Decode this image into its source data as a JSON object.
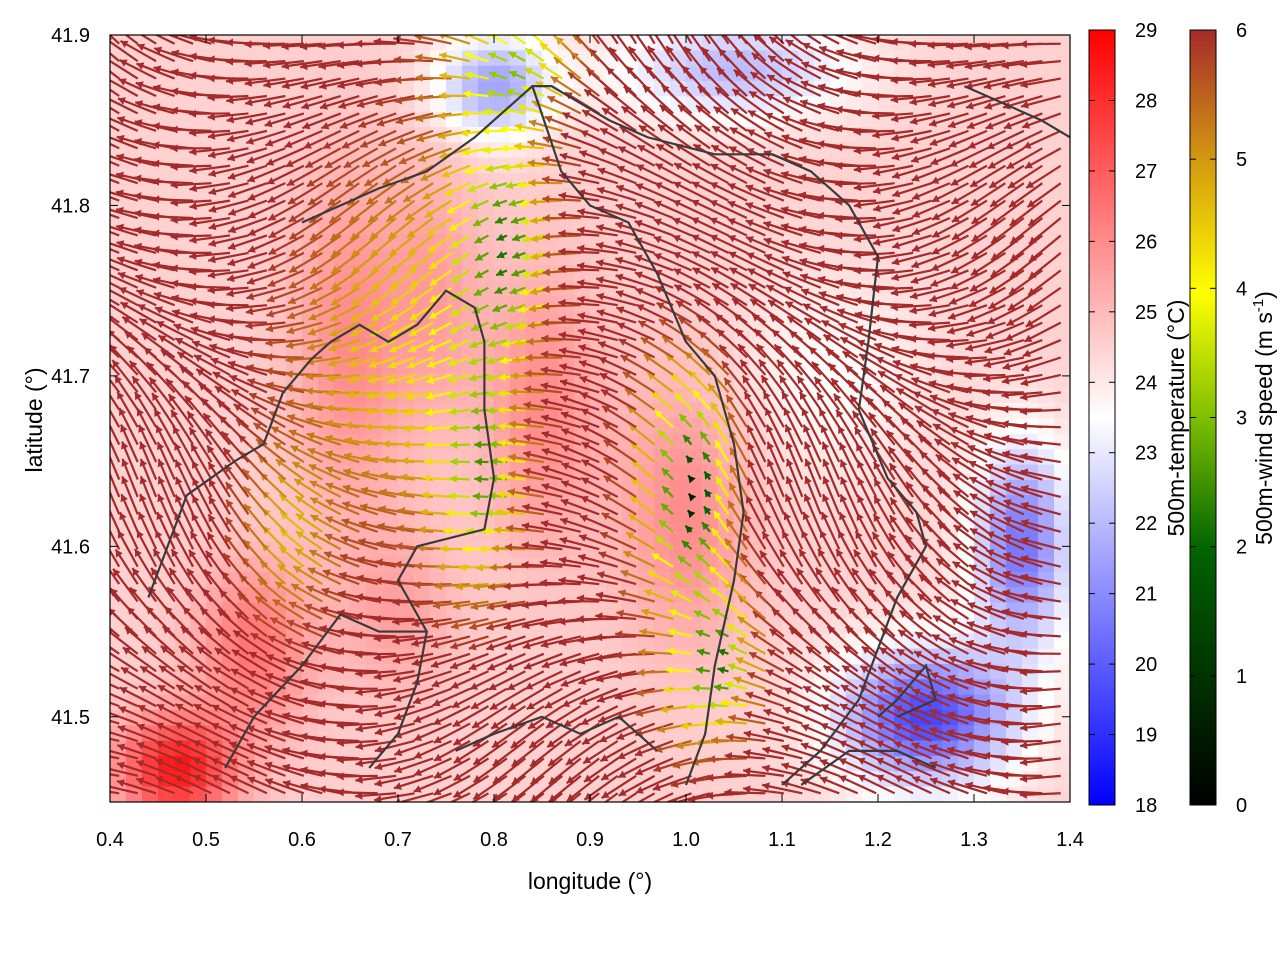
{
  "chart_data": {
    "type": "heatmap",
    "subtype": "temperature field with wind vectors and contour lines",
    "xlabel": "longitude (°)",
    "ylabel": "latitude (°)",
    "xlim": [
      0.4,
      1.4
    ],
    "ylim": [
      41.45,
      41.9
    ],
    "x_ticks": [
      0.4,
      0.5,
      0.6,
      0.7,
      0.8,
      0.9,
      1.0,
      1.1,
      1.2,
      1.3,
      1.4
    ],
    "x_tick_labels": [
      "0.4",
      "0.5",
      "0.6",
      "0.7",
      "0.8",
      "0.9",
      "1.0",
      "1.1",
      "1.2",
      "1.3",
      "1.4"
    ],
    "y_ticks": [
      41.5,
      41.6,
      41.7,
      41.8,
      41.9
    ],
    "y_tick_labels": [
      "41.5",
      "41.6",
      "41.7",
      "41.8",
      "41.9"
    ],
    "grid": false,
    "colorbars": [
      {
        "label": "500m-temperature (°C)",
        "range": [
          18,
          29
        ],
        "ticks": [
          18,
          19,
          20,
          21,
          22,
          23,
          24,
          25,
          26,
          27,
          28,
          29
        ],
        "tick_labels": [
          "18",
          "19",
          "20",
          "21",
          "22",
          "23",
          "24",
          "25",
          "26",
          "27",
          "28",
          "29"
        ],
        "colors": [
          "#0000ff",
          "#ffffff",
          "#ff0000"
        ]
      },
      {
        "label": "500m-wind speed (m s",
        "label_superscript": "-1",
        "label_suffix": ")",
        "range": [
          0,
          6
        ],
        "ticks": [
          0,
          1,
          2,
          3,
          4,
          5,
          6
        ],
        "tick_labels": [
          "0",
          "1",
          "2",
          "3",
          "4",
          "5",
          "6"
        ],
        "colors": [
          "#000000",
          "#006400",
          "#7fbf00",
          "#ffff00",
          "#d49a10",
          "#a52a2a"
        ]
      }
    ],
    "temperature_features": [
      {
        "lon": 0.47,
        "lat": 41.47,
        "temp": 28.5,
        "spread_lon": 0.06,
        "spread_lat": 0.03
      },
      {
        "lon": 0.55,
        "lat": 41.54,
        "temp": 26.5,
        "spread_lon": 0.06,
        "spread_lat": 0.05
      },
      {
        "lon": 0.65,
        "lat": 41.72,
        "temp": 26,
        "spread_lon": 0.06,
        "spread_lat": 0.1
      },
      {
        "lon": 0.74,
        "lat": 41.75,
        "temp": 25.5,
        "spread_lon": 0.05,
        "spread_lat": 0.08
      },
      {
        "lon": 0.85,
        "lat": 41.68,
        "temp": 26,
        "spread_lon": 0.06,
        "spread_lat": 0.08
      },
      {
        "lon": 1.0,
        "lat": 41.62,
        "temp": 26,
        "spread_lon": 0.07,
        "spread_lat": 0.08
      },
      {
        "lon": 0.7,
        "lat": 41.56,
        "temp": 25.5,
        "spread_lon": 0.06,
        "spread_lat": 0.05
      },
      {
        "lon": 0.8,
        "lat": 41.87,
        "temp": 21.5,
        "spread_lon": 0.06,
        "spread_lat": 0.03
      },
      {
        "lon": 1.25,
        "lat": 41.5,
        "temp": 19.5,
        "spread_lon": 0.09,
        "spread_lat": 0.04
      },
      {
        "lon": 1.35,
        "lat": 41.6,
        "temp": 20.5,
        "spread_lon": 0.05,
        "spread_lat": 0.06
      },
      {
        "lon": 1.05,
        "lat": 41.88,
        "temp": 22,
        "spread_lon": 0.12,
        "spread_lat": 0.03
      },
      {
        "lon": 1.15,
        "lat": 41.7,
        "temp": 23.5,
        "spread_lon": 0.1,
        "spread_lat": 0.06
      }
    ],
    "background_temperature": 24.5,
    "wind_features": [
      {
        "lon": 0.82,
        "lat": 41.78,
        "speed": 2.0,
        "spread_lon": 0.05,
        "spread_lat": 0.07
      },
      {
        "lon": 1.01,
        "lat": 41.63,
        "speed": 0.3,
        "spread_lon": 0.04,
        "spread_lat": 0.06
      },
      {
        "lon": 0.8,
        "lat": 41.64,
        "speed": 2.5,
        "spread_lon": 0.04,
        "spread_lat": 0.06
      },
      {
        "lon": 0.72,
        "lat": 41.72,
        "speed": 4.0,
        "spread_lon": 0.1,
        "spread_lat": 0.1
      },
      {
        "lon": 0.6,
        "lat": 41.6,
        "speed": 4.5,
        "spread_lon": 0.05,
        "spread_lat": 0.05
      },
      {
        "lon": 0.83,
        "lat": 41.88,
        "speed": 3.0,
        "spread_lon": 0.06,
        "spread_lat": 0.03
      },
      {
        "lon": 1.04,
        "lat": 41.53,
        "speed": 1.5,
        "spread_lon": 0.04,
        "spread_lat": 0.04
      }
    ],
    "background_wind_speed": 6.2,
    "contours": [
      [
        [
          0.44,
          41.57
        ],
        [
          0.46,
          41.6
        ],
        [
          0.48,
          41.63
        ],
        [
          0.53,
          41.65
        ],
        [
          0.56,
          41.66
        ],
        [
          0.58,
          41.69
        ],
        [
          0.61,
          41.71
        ],
        [
          0.63,
          41.72
        ],
        [
          0.66,
          41.73
        ],
        [
          0.69,
          41.72
        ],
        [
          0.72,
          41.73
        ],
        [
          0.75,
          41.75
        ],
        [
          0.78,
          41.74
        ],
        [
          0.79,
          41.72
        ],
        [
          0.79,
          41.68
        ],
        [
          0.8,
          41.64
        ],
        [
          0.79,
          41.61
        ],
        [
          0.72,
          41.6
        ],
        [
          0.7,
          41.58
        ],
        [
          0.73,
          41.55
        ],
        [
          0.72,
          41.52
        ],
        [
          0.7,
          41.49
        ],
        [
          0.67,
          41.47
        ]
      ],
      [
        [
          0.6,
          41.79
        ],
        [
          0.64,
          41.8
        ],
        [
          0.68,
          41.81
        ],
        [
          0.73,
          41.82
        ],
        [
          0.78,
          41.84
        ],
        [
          0.82,
          41.86
        ],
        [
          0.84,
          41.87
        ],
        [
          0.86,
          41.87
        ],
        [
          0.89,
          41.86
        ],
        [
          0.92,
          41.85
        ],
        [
          0.96,
          41.84
        ],
        [
          1.03,
          41.83
        ],
        [
          1.09,
          41.83
        ],
        [
          1.13,
          41.82
        ],
        [
          1.17,
          41.8
        ],
        [
          1.2,
          41.77
        ],
        [
          1.19,
          41.72
        ],
        [
          1.18,
          41.68
        ],
        [
          1.21,
          41.64
        ],
        [
          1.24,
          41.62
        ],
        [
          1.25,
          41.6
        ],
        [
          1.22,
          41.57
        ],
        [
          1.2,
          41.54
        ],
        [
          1.18,
          41.51
        ],
        [
          1.14,
          41.48
        ],
        [
          1.1,
          41.46
        ]
      ],
      [
        [
          0.52,
          41.47
        ],
        [
          0.55,
          41.5
        ],
        [
          0.6,
          41.53
        ],
        [
          0.64,
          41.56
        ],
        [
          0.68,
          41.55
        ],
        [
          0.73,
          41.55
        ]
      ],
      [
        [
          0.84,
          41.87
        ],
        [
          0.87,
          41.82
        ],
        [
          0.9,
          41.8
        ],
        [
          0.94,
          41.79
        ],
        [
          0.97,
          41.76
        ],
        [
          1.0,
          41.72
        ],
        [
          1.03,
          41.7
        ],
        [
          1.05,
          41.66
        ],
        [
          1.06,
          41.62
        ],
        [
          1.05,
          41.58
        ],
        [
          1.03,
          41.53
        ],
        [
          1.02,
          41.49
        ],
        [
          1.0,
          41.46
        ]
      ],
      [
        [
          0.76,
          41.48
        ],
        [
          0.8,
          41.49
        ],
        [
          0.85,
          41.5
        ],
        [
          0.89,
          41.49
        ],
        [
          0.93,
          41.5
        ],
        [
          0.97,
          41.48
        ]
      ],
      [
        [
          1.29,
          41.87
        ],
        [
          1.33,
          41.86
        ],
        [
          1.37,
          41.85
        ],
        [
          1.4,
          41.84
        ]
      ],
      [
        [
          1.2,
          41.5
        ],
        [
          1.22,
          41.51
        ],
        [
          1.25,
          41.53
        ],
        [
          1.26,
          41.51
        ],
        [
          1.22,
          41.5
        ]
      ],
      [
        [
          1.12,
          41.46
        ],
        [
          1.17,
          41.48
        ],
        [
          1.22,
          41.48
        ],
        [
          1.26,
          41.47
        ]
      ]
    ]
  }
}
